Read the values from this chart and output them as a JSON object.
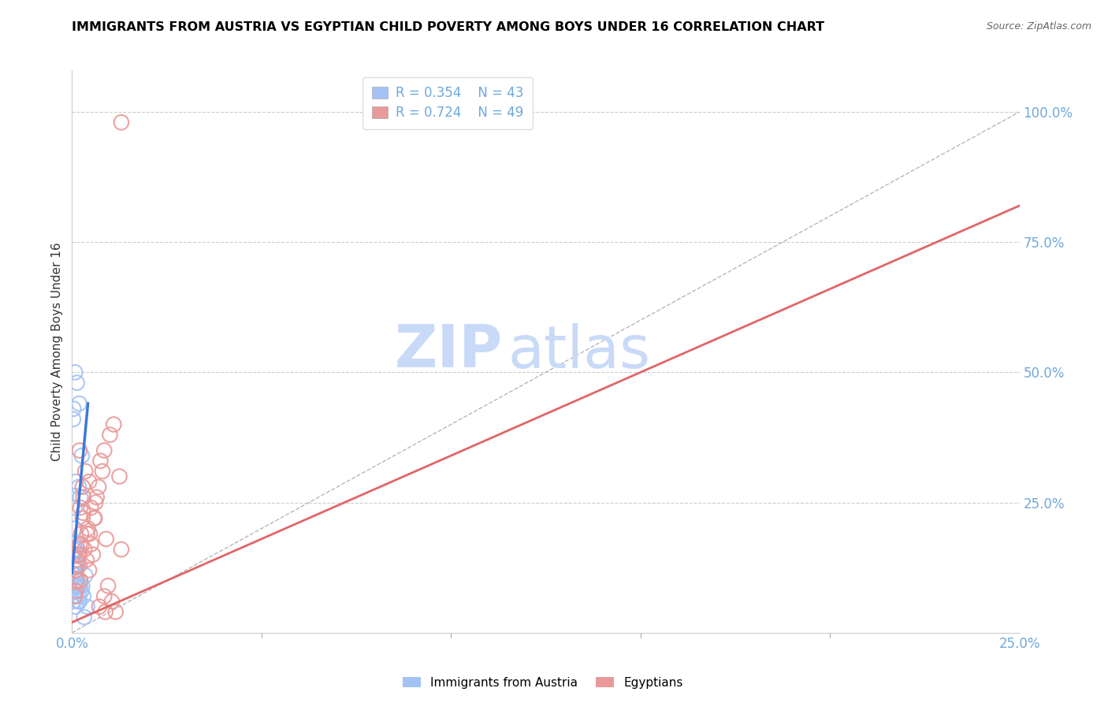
{
  "title": "IMMIGRANTS FROM AUSTRIA VS EGYPTIAN CHILD POVERTY AMONG BOYS UNDER 16 CORRELATION CHART",
  "source": "Source: ZipAtlas.com",
  "ylabel": "Child Poverty Among Boys Under 16",
  "legend_blue_r": "R = 0.354",
  "legend_blue_n": "N = 43",
  "legend_pink_r": "R = 0.724",
  "legend_pink_n": "N = 49",
  "legend_label_blue": "Immigrants from Austria",
  "legend_label_pink": "Egyptians",
  "blue_color": "#a4c2f4",
  "pink_color": "#ea9999",
  "blue_line_color": "#3c78d8",
  "pink_line_color": "#e06666",
  "dashed_line_color": "#b7b7b7",
  "watermark_zip": "ZIP",
  "watermark_atlas": "atlas",
  "watermark_color": "#c9daf8",
  "background": "#ffffff",
  "xlim": [
    0.0,
    0.25
  ],
  "ylim": [
    0.0,
    1.08
  ],
  "xtick_positions": [
    0.0,
    0.25
  ],
  "xtick_labels": [
    "0.0%",
    "25.0%"
  ],
  "ytick_right_positions": [
    0.25,
    0.5,
    0.75,
    1.0
  ],
  "ytick_right_labels": [
    "25.0%",
    "50.0%",
    "75.0%",
    "100.0%"
  ],
  "blue_scatter_x": [
    0.0008,
    0.0012,
    0.0005,
    0.0018,
    0.0022,
    0.001,
    0.0015,
    0.0007,
    0.0025,
    0.0014,
    0.0009,
    0.0011,
    0.0006,
    0.002,
    0.003,
    0.0013,
    0.0008,
    0.0004,
    0.0017,
    0.0024,
    0.0035,
    0.0012,
    0.0009,
    0.0004,
    0.0016,
    0.0021,
    0.0011,
    0.0027,
    0.0003,
    0.0008,
    0.0013,
    0.0019,
    0.0004,
    0.0007,
    0.0022,
    0.001,
    0.0018,
    0.0026,
    0.0006,
    0.0003,
    0.0009,
    0.0032,
    0.004
  ],
  "blue_scatter_y": [
    0.08,
    0.12,
    0.16,
    0.07,
    0.1,
    0.09,
    0.13,
    0.11,
    0.08,
    0.1,
    0.07,
    0.09,
    0.17,
    0.06,
    0.07,
    0.14,
    0.2,
    0.13,
    0.09,
    0.08,
    0.11,
    0.16,
    0.13,
    0.15,
    0.06,
    0.09,
    0.11,
    0.09,
    0.41,
    0.5,
    0.48,
    0.44,
    0.43,
    0.24,
    0.26,
    0.29,
    0.28,
    0.34,
    0.07,
    0.06,
    0.05,
    0.03,
    0.05
  ],
  "pink_scatter_x": [
    0.0008,
    0.0012,
    0.002,
    0.0016,
    0.0024,
    0.001,
    0.0028,
    0.002,
    0.003,
    0.0014,
    0.0022,
    0.0028,
    0.0035,
    0.001,
    0.002,
    0.004,
    0.003,
    0.0025,
    0.0045,
    0.006,
    0.0033,
    0.0042,
    0.005,
    0.0022,
    0.0055,
    0.0047,
    0.0038,
    0.0062,
    0.007,
    0.0075,
    0.0065,
    0.0058,
    0.005,
    0.008,
    0.0095,
    0.0085,
    0.0072,
    0.0088,
    0.0105,
    0.0115,
    0.013,
    0.002,
    0.0045,
    0.0085,
    0.009,
    0.01,
    0.011,
    0.0125,
    0.013
  ],
  "pink_scatter_y": [
    0.07,
    0.1,
    0.13,
    0.15,
    0.19,
    0.08,
    0.22,
    0.17,
    0.26,
    0.14,
    0.24,
    0.28,
    0.31,
    0.12,
    0.15,
    0.19,
    0.23,
    0.17,
    0.12,
    0.22,
    0.16,
    0.2,
    0.24,
    0.1,
    0.15,
    0.19,
    0.14,
    0.25,
    0.28,
    0.33,
    0.26,
    0.22,
    0.17,
    0.31,
    0.09,
    0.07,
    0.05,
    0.04,
    0.06,
    0.04,
    0.16,
    0.35,
    0.29,
    0.35,
    0.18,
    0.38,
    0.4,
    0.3,
    0.98
  ],
  "blue_line_x": [
    0.0,
    0.0042
  ],
  "blue_line_y": [
    0.115,
    0.44
  ],
  "pink_line_x": [
    0.0,
    0.25
  ],
  "pink_line_y": [
    0.02,
    0.82
  ],
  "diagonal_line_x": [
    0.0,
    0.25
  ],
  "diagonal_line_y": [
    0.0,
    1.0
  ]
}
